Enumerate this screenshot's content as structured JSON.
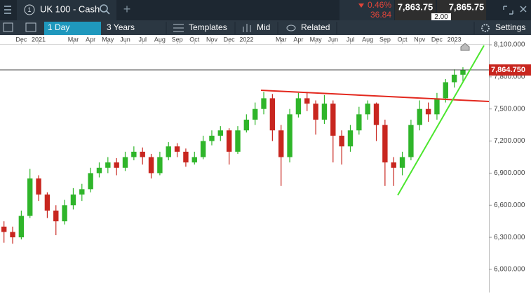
{
  "header": {
    "instrument": "UK 100 - Cash",
    "change_percent": "0.46%",
    "change_points": "36.84",
    "sell_price": "7,863.75",
    "spread": "2.00",
    "buy_price": "7,865.75"
  },
  "toolbar": {
    "interval": "1 Day",
    "range": "3 Years",
    "templates": "Templates",
    "price_type": "Mid",
    "related": "Related",
    "settings": "Settings"
  },
  "chart_data": {
    "type": "candlestick",
    "x": [
      -2.0,
      -1.5,
      -1.0,
      -0.5,
      0.0,
      0.5,
      1.0,
      1.5,
      2.0,
      2.5,
      3.0,
      3.5,
      4.0,
      4.5,
      5.0,
      5.5,
      6.0,
      6.5,
      7.0,
      7.5,
      8.0,
      8.5,
      9.0,
      9.5,
      10.0,
      10.5,
      11.0,
      11.5,
      12.0,
      12.5,
      13.0,
      13.5,
      14.0,
      14.5,
      15.0,
      15.5,
      16.0,
      16.5,
      17.0,
      17.5,
      18.0,
      18.5,
      19.0,
      19.5,
      20.0,
      20.5,
      21.0,
      21.5,
      22.0,
      22.5,
      23.0,
      23.5,
      24.0,
      24.5
    ],
    "series": [
      {
        "up_color": "#2fb52a",
        "down_color": "#c8261f",
        "open": [
          6400,
          6350,
          6300,
          6500,
          6850,
          6700,
          6550,
          6450,
          6600,
          6700,
          6750,
          6900,
          6950,
          7000,
          6950,
          7050,
          7100,
          7050,
          6900,
          7050,
          7150,
          7100,
          7000,
          7050,
          7200,
          7250,
          7300,
          7100,
          7300,
          7400,
          7500,
          7600,
          7300,
          7050,
          7450,
          7600,
          7550,
          7400,
          7550,
          7250,
          7150,
          7300,
          7450,
          7550,
          7350,
          7000,
          6950,
          7050,
          7350,
          7500,
          7450,
          7600,
          7750,
          7820
        ],
        "high": [
          6450,
          6400,
          6550,
          6940,
          6880,
          6720,
          6600,
          6650,
          6760,
          6800,
          6950,
          7000,
          7050,
          7040,
          7100,
          7150,
          7140,
          7080,
          7100,
          7190,
          7180,
          7130,
          7100,
          7250,
          7300,
          7340,
          7320,
          7340,
          7450,
          7560,
          7660,
          7640,
          7350,
          7500,
          7650,
          7660,
          7580,
          7630,
          7580,
          7300,
          7350,
          7520,
          7580,
          7560,
          7400,
          7050,
          7100,
          7400,
          7580,
          7560,
          7650,
          7780,
          7870,
          7890
        ],
        "low": [
          6250,
          6240,
          6280,
          6480,
          6640,
          6480,
          6320,
          6420,
          6560,
          6640,
          6720,
          6860,
          6900,
          6880,
          6920,
          7020,
          6980,
          6850,
          6880,
          7020,
          7050,
          6960,
          6980,
          7030,
          7160,
          7200,
          6980,
          7080,
          7280,
          7350,
          7450,
          7200,
          6780,
          7000,
          7420,
          7480,
          7260,
          7360,
          7000,
          6980,
          7100,
          7260,
          7400,
          7200,
          6780,
          6780,
          6880,
          7020,
          7300,
          7380,
          7400,
          7560,
          7700,
          7760
        ],
        "close": [
          6350,
          6300,
          6500,
          6850,
          6700,
          6550,
          6450,
          6600,
          6700,
          6750,
          6900,
          6950,
          7000,
          6950,
          7050,
          7100,
          7050,
          6900,
          7050,
          7150,
          7100,
          7000,
          7050,
          7200,
          7250,
          7300,
          7100,
          7300,
          7400,
          7500,
          7600,
          7300,
          7050,
          7450,
          7600,
          7550,
          7400,
          7550,
          7250,
          7150,
          7300,
          7450,
          7550,
          7350,
          7000,
          6950,
          7050,
          7350,
          7500,
          7450,
          7600,
          7750,
          7820,
          7865
        ]
      }
    ],
    "last_price": {
      "value": 7864.75,
      "label": "7,864.750"
    },
    "xlim": [
      -2.23,
      26.0
    ],
    "xticks": [
      {
        "value": -1,
        "label": "Dec"
      },
      {
        "value": 0,
        "label": "2021"
      },
      {
        "value": 2,
        "label": "Mar"
      },
      {
        "value": 3,
        "label": "Apr"
      },
      {
        "value": 4,
        "label": "May"
      },
      {
        "value": 5,
        "label": "Jun"
      },
      {
        "value": 6,
        "label": "Jul"
      },
      {
        "value": 7,
        "label": "Aug"
      },
      {
        "value": 8,
        "label": "Sep"
      },
      {
        "value": 9,
        "label": "Oct"
      },
      {
        "value": 10,
        "label": "Nov"
      },
      {
        "value": 11,
        "label": "Dec"
      },
      {
        "value": 12,
        "label": "2022"
      },
      {
        "value": 14,
        "label": "Mar"
      },
      {
        "value": 15,
        "label": "Apr"
      },
      {
        "value": 16,
        "label": "May"
      },
      {
        "value": 17,
        "label": "Jun"
      },
      {
        "value": 18,
        "label": "Jul"
      },
      {
        "value": 19,
        "label": "Aug"
      },
      {
        "value": 20,
        "label": "Sep"
      },
      {
        "value": 21,
        "label": "Oct"
      },
      {
        "value": 22,
        "label": "Nov"
      },
      {
        "value": 23,
        "label": "Dec"
      },
      {
        "value": 24,
        "label": "2023"
      }
    ],
    "ylim": [
      5784,
      8100
    ],
    "yticks": [
      {
        "value": 8100,
        "label": "8,100.000"
      },
      {
        "value": 7800,
        "label": "7,800.000"
      },
      {
        "value": 7500,
        "label": "7,500.000"
      },
      {
        "value": 7200,
        "label": "7,200.000"
      },
      {
        "value": 6900,
        "label": "6,900.000"
      },
      {
        "value": 6600,
        "label": "6,600.000"
      },
      {
        "value": 6300,
        "label": "6,300.000"
      },
      {
        "value": 6000,
        "label": "6,000.000"
      }
    ]
  }
}
